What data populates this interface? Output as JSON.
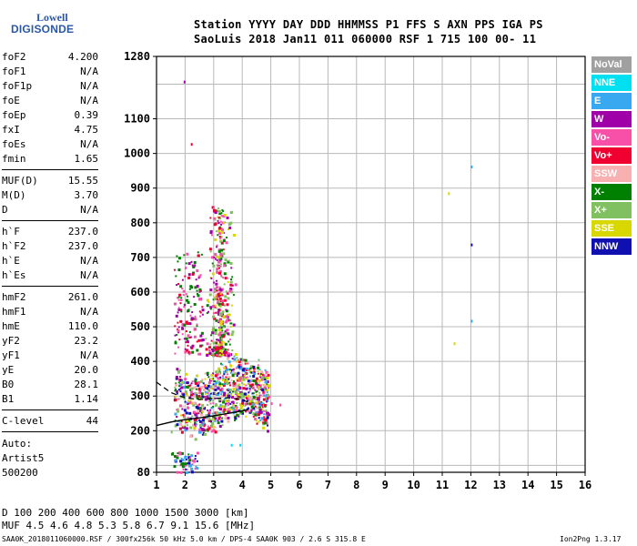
{
  "logo": {
    "top": "Lowell",
    "main": "DIGISONDE"
  },
  "header": {
    "line1": "Station YYYY DAY  DDD HHMMSS P1  FFS S AXN PPS IGA PS",
    "line2": "SaoLuis 2018 Jan11 011 060000 RSF     1 715 100 00- 11"
  },
  "params": [
    {
      "k": "foF2",
      "v": "4.200"
    },
    {
      "k": "foF1",
      "v": "N/A"
    },
    {
      "k": "foF1p",
      "v": "N/A"
    },
    {
      "k": "foE",
      "v": "N/A"
    },
    {
      "k": "foEp",
      "v": "0.39"
    },
    {
      "k": "fxI",
      "v": "4.75"
    },
    {
      "k": "foEs",
      "v": "N/A"
    },
    {
      "k": "fmin",
      "v": "1.65"
    },
    {
      "k": "MUF(D)",
      "v": "15.55"
    },
    {
      "k": "M(D)",
      "v": "3.70"
    },
    {
      "k": "D",
      "v": "N/A"
    },
    {
      "k": "h`F",
      "v": "237.0"
    },
    {
      "k": "h`F2",
      "v": "237.0"
    },
    {
      "k": "h`E",
      "v": "N/A"
    },
    {
      "k": "h`Es",
      "v": "N/A"
    },
    {
      "k": "hmF2",
      "v": "261.0"
    },
    {
      "k": "hmF1",
      "v": "N/A"
    },
    {
      "k": "hmE",
      "v": "110.0"
    },
    {
      "k": "yF2",
      "v": "23.2"
    },
    {
      "k": "yF1",
      "v": "N/A"
    },
    {
      "k": "yE",
      "v": "20.0"
    },
    {
      "k": "B0",
      "v": "28.1"
    },
    {
      "k": "B1",
      "v": "1.14"
    },
    {
      "k": "C-level",
      "v": "44"
    }
  ],
  "autoscale": {
    "line1": "Auto:",
    "line2": "Artist5",
    "line3": "500200"
  },
  "legend": [
    {
      "label": "NoVal",
      "color": "#a0a0a0"
    },
    {
      "label": "NNE",
      "color": "#00e0f0"
    },
    {
      "label": "E",
      "color": "#38a8f0"
    },
    {
      "label": "W",
      "color": "#a000a8"
    },
    {
      "label": "Vo-",
      "color": "#f850a8"
    },
    {
      "label": "Vo+",
      "color": "#f00030"
    },
    {
      "label": "SSW",
      "color": "#f8b0b0"
    },
    {
      "label": "X-",
      "color": "#008000"
    },
    {
      "label": "X+",
      "color": "#80c060"
    },
    {
      "label": "SSE",
      "color": "#d8d800"
    },
    {
      "label": "NNW",
      "color": "#1010b0"
    }
  ],
  "muf_table": {
    "row1": "D    100  200  400  600  800 1000 1500 3000 [km]",
    "row2": "MUF   4.5  4.6  4.8  5.3  5.8  6.7  9.1 15.6 [MHz]"
  },
  "footer": {
    "left": "SAA0K_2018011060000.RSF / 300fx256k 50 kHz 5.0 km / DPS-4 SAA0K 903 / 2.6 S 315.8 E",
    "right": "Ion2Png 1.3.17"
  },
  "chart_data": {
    "type": "scatter",
    "title": "",
    "xlabel": "",
    "ylabel": "",
    "xlim": [
      1,
      16
    ],
    "ylim": [
      80,
      1280
    ],
    "x_ticks": [
      1,
      2,
      3,
      4,
      5,
      6,
      7,
      8,
      9,
      10,
      11,
      12,
      13,
      14,
      15,
      16
    ],
    "y_ticks": [
      80,
      200,
      300,
      400,
      500,
      600,
      700,
      800,
      900,
      1000,
      1100,
      1280
    ],
    "grid": true,
    "clusters": [
      {
        "name": "F-trace",
        "x_range": [
          1.6,
          4.9
        ],
        "y_range": [
          230,
          430
        ],
        "colors": [
          "#f850a8",
          "#f00030",
          "#008000",
          "#a000a8",
          "#38a8f0",
          "#1010b0",
          "#d8d800",
          "#80c060",
          "#f8b0b0"
        ]
      },
      {
        "name": "F-spread",
        "x_range": [
          2.7,
          3.8
        ],
        "y_range": [
          420,
          850
        ],
        "colors": [
          "#f850a8",
          "#d8d800",
          "#80c060",
          "#008000",
          "#a000a8",
          "#f00030"
        ]
      },
      {
        "name": "F-oblique",
        "x_range": [
          1.6,
          2.6
        ],
        "y_range": [
          420,
          720
        ],
        "colors": [
          "#f850a8",
          "#f00030",
          "#a000a8",
          "#008000"
        ]
      },
      {
        "name": "E-region",
        "x_range": [
          1.5,
          2.4
        ],
        "y_range": [
          82,
          140
        ],
        "colors": [
          "#1010b0",
          "#38a8f0",
          "#008000",
          "#f850a8"
        ]
      }
    ],
    "isolated_points": [
      {
        "x": 1.95,
        "y": 1210,
        "color": "#a000a8"
      },
      {
        "x": 2.2,
        "y": 1030,
        "color": "#f00030"
      },
      {
        "x": 12.0,
        "y": 965,
        "color": "#38a8f0"
      },
      {
        "x": 11.2,
        "y": 888,
        "color": "#d8d800"
      },
      {
        "x": 12.0,
        "y": 740,
        "color": "#1010b0"
      },
      {
        "x": 12.0,
        "y": 520,
        "color": "#38a8f0"
      },
      {
        "x": 5.0,
        "y": 282,
        "color": "#f850a8"
      },
      {
        "x": 5.3,
        "y": 278,
        "color": "#f850a8"
      },
      {
        "x": 3.6,
        "y": 162,
        "color": "#00e0f0"
      },
      {
        "x": 3.9,
        "y": 162,
        "color": "#00e0f0"
      },
      {
        "x": 1.5,
        "y": 200,
        "color": "#80c060"
      },
      {
        "x": 11.4,
        "y": 455,
        "color": "#d8d800"
      }
    ],
    "profile_solid": {
      "x": [
        1.0,
        1.5,
        2.0,
        2.5,
        3.0,
        3.5,
        4.0,
        4.2
      ],
      "y": [
        215,
        225,
        232,
        237,
        243,
        250,
        257,
        261
      ]
    },
    "profile_dashed": {
      "x": [
        1.0,
        1.5,
        2.0,
        2.5,
        3.0,
        3.5,
        4.0,
        4.2
      ],
      "y": [
        340,
        310,
        295,
        290,
        293,
        295,
        290,
        282
      ]
    }
  }
}
